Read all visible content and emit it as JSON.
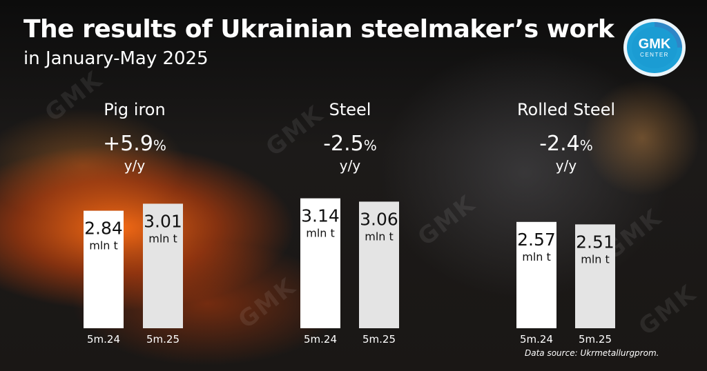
{
  "header": {
    "title": "The results of Ukrainian steelmaker’s work",
    "subtitle": "in January-May 2025"
  },
  "logo": {
    "line1": "GMK",
    "line2": "CENTER"
  },
  "watermark": "GMK",
  "source": "Data source: Ukrmetallurgprom.",
  "panels": [
    {
      "name": "Pig iron",
      "change": "+5.9",
      "pct": "%",
      "yy": "y/y"
    },
    {
      "name": "Steel",
      "change": "-2.5",
      "pct": "%",
      "yy": "y/y"
    },
    {
      "name": "Rolled Steel",
      "change": "-2.4",
      "pct": "%",
      "yy": "y/y"
    }
  ],
  "chart_data": [
    {
      "type": "bar",
      "title": "Pig iron",
      "categories": [
        "5m.24",
        "5m.25"
      ],
      "values": [
        2.84,
        3.01
      ],
      "value_labels": [
        "2.84",
        "3.01"
      ],
      "unit": "mln t",
      "colors": [
        "#ffffff",
        "#e4e4e4"
      ]
    },
    {
      "type": "bar",
      "title": "Steel",
      "categories": [
        "5m.24",
        "5m.25"
      ],
      "values": [
        3.14,
        3.06
      ],
      "value_labels": [
        "3.14",
        "3.06"
      ],
      "unit": "mln t",
      "colors": [
        "#ffffff",
        "#e4e4e4"
      ]
    },
    {
      "type": "bar",
      "title": "Rolled Steel",
      "categories": [
        "5m.24",
        "5m.25"
      ],
      "values": [
        2.57,
        2.51
      ],
      "value_labels": [
        "2.57",
        "2.51"
      ],
      "unit": "mln t",
      "colors": [
        "#ffffff",
        "#e4e4e4"
      ]
    }
  ]
}
